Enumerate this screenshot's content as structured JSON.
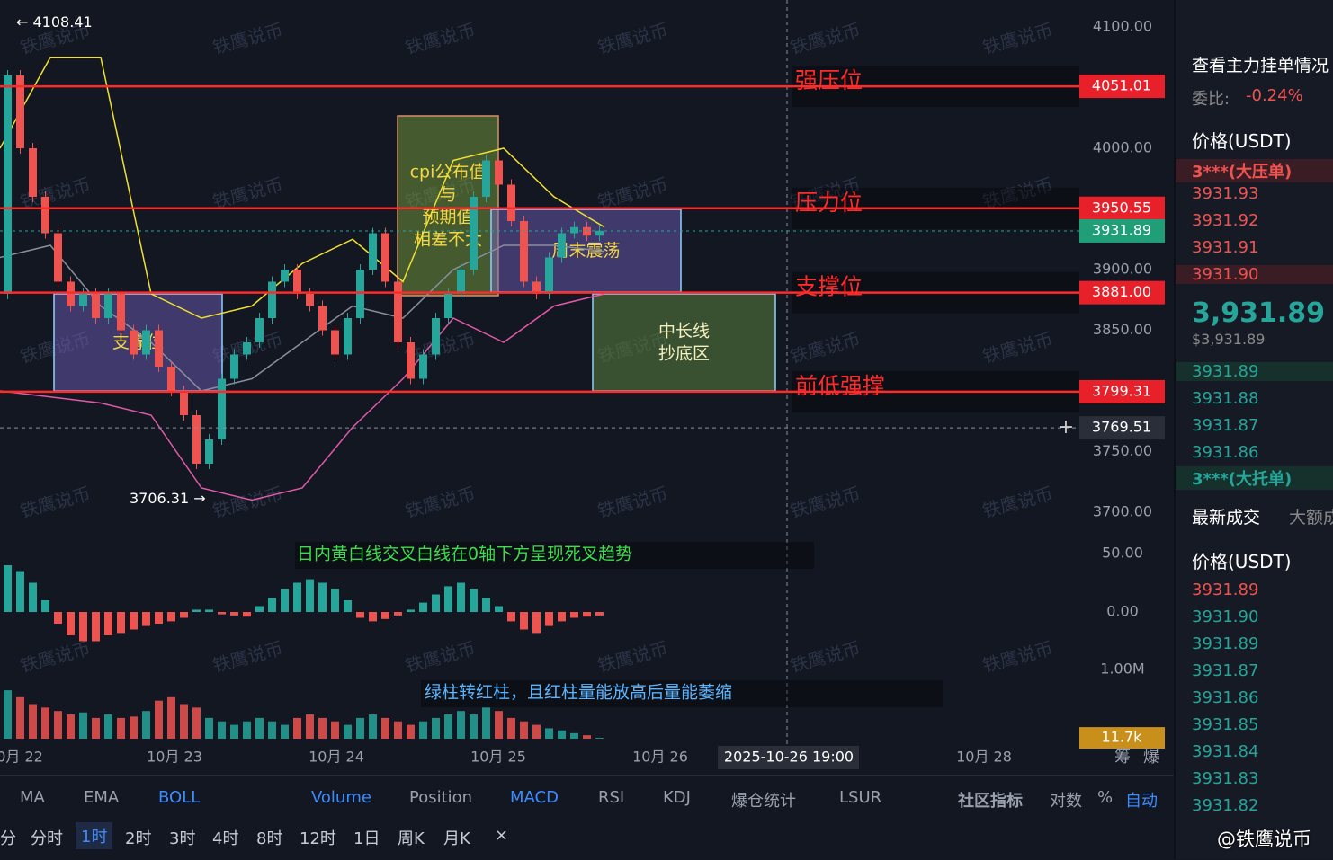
{
  "chart": {
    "watermark": "铁鹰说币",
    "high": {
      "value": 4108.41,
      "label": "← 4108.41"
    },
    "low": {
      "value": 3706.31,
      "label": "3706.31 →"
    },
    "price_ticks": [
      {
        "value": 4100,
        "label": "4100.00"
      },
      {
        "value": 4000,
        "label": "4000.00"
      },
      {
        "value": 3900,
        "label": "3900.00"
      },
      {
        "value": 3850,
        "label": "3850.00"
      },
      {
        "value": 3750,
        "label": "3750.00"
      },
      {
        "value": 3700,
        "label": "3700.00"
      }
    ],
    "levels": [
      {
        "value": 4051.01,
        "label": "4051.01",
        "name": "强压位"
      },
      {
        "value": 3950.55,
        "label": "3950.55",
        "name": "压力位"
      },
      {
        "value": 3881,
        "label": "3881.00",
        "name": "支撑位"
      },
      {
        "value": 3799.31,
        "label": "3799.31",
        "name": "前低强撑"
      }
    ],
    "current": {
      "value": 3931.89,
      "label": "3931.89"
    },
    "crosshair": {
      "value": 3769.51,
      "label": "3769.51",
      "time": "2025-10-26 19:00"
    },
    "x_labels": [
      "0月 22",
      "10月 23",
      "10月 24",
      "10月 25",
      "10月 26",
      "10月 28"
    ],
    "axis_buttons": [
      "筹",
      "爆"
    ],
    "open": 3880,
    "closes": [
      4060,
      4000,
      3960,
      3930,
      3890,
      3870,
      3880,
      3860,
      3880,
      3850,
      3830,
      3850,
      3820,
      3800,
      3780,
      3740,
      3760,
      3810,
      3830,
      3840,
      3860,
      3890,
      3900,
      3880,
      3870,
      3850,
      3830,
      3860,
      3900,
      3930,
      3890,
      3840,
      3810,
      3830,
      3860,
      3880,
      3900,
      3960,
      3990,
      3970,
      3940,
      3890,
      3880,
      3910,
      3930,
      3935,
      3928,
      3932
    ],
    "boll": {
      "upper": [
        4000,
        4075,
        4075,
        3880,
        3860,
        3870,
        3905,
        3925,
        3890,
        3990,
        4000,
        3960,
        3935
      ],
      "mid": [
        3910,
        3920,
        3870,
        3840,
        3800,
        3810,
        3840,
        3870,
        3860,
        3900,
        3920,
        3920,
        3915
      ],
      "lower": [
        3800,
        3795,
        3790,
        3780,
        3720,
        3710,
        3720,
        3770,
        3810,
        3860,
        3840,
        3870,
        3880
      ]
    },
    "boxes": [
      "支撑位",
      "cpi公布值\n与\n预期值\n相差不大",
      "周末震荡",
      "中长线\n抄底区"
    ],
    "macd_note": "日内黄白线交叉白线在0轴下方呈现死叉趋势",
    "volume_note": "绿柱转红柱，且红柱量能放高后量能萎缩",
    "macd_ticks": [
      {
        "value": 50,
        "label": "50.00"
      },
      {
        "value": 0,
        "label": "0.00"
      }
    ],
    "macd_hist": [
      40,
      35,
      25,
      10,
      -10,
      -20,
      -25,
      -25,
      -20,
      -18,
      -15,
      -12,
      -10,
      -8,
      -5,
      2,
      2,
      -2,
      -3,
      -4,
      5,
      12,
      20,
      25,
      28,
      25,
      20,
      10,
      -5,
      -8,
      -6,
      -3,
      2,
      8,
      15,
      22,
      25,
      20,
      12,
      5,
      -8,
      -15,
      -18,
      -12,
      -8,
      -5,
      -4,
      -3
    ],
    "volume_ticks": [
      {
        "value": 1000000,
        "label": "1.00M"
      }
    ],
    "volume_current": {
      "value": 11700,
      "label": "11.7k"
    },
    "volume": [
      700000,
      600000,
      500000,
      450000,
      400000,
      350000,
      380000,
      300000,
      350000,
      300000,
      320000,
      400000,
      550000,
      600000,
      500000,
      450000,
      300000,
      250000,
      200000,
      250000,
      300000,
      250000,
      200000,
      300000,
      350000,
      300000,
      250000,
      200000,
      300000,
      350000,
      300000,
      250000,
      200000,
      250000,
      300000,
      350000,
      400000,
      350000,
      450000,
      400000,
      300000,
      250000,
      200000,
      150000,
      120000,
      80000,
      50000,
      11700
    ]
  },
  "toolbar": {
    "indicators": [
      "MA",
      "EMA",
      "BOLL",
      "Volume",
      "Position",
      "MACD",
      "RSI",
      "KDJ",
      "爆仓统计",
      "LSUR",
      "社区指标",
      "对数",
      "%",
      "自动"
    ],
    "intervals": [
      "分",
      "分时",
      "1时",
      "2时",
      "3时",
      "4时",
      "8时",
      "12时",
      "1日",
      "周K",
      "月K",
      "×"
    ]
  },
  "orderbook": {
    "title": "查看主力挂单情况",
    "ratio_label": "委比:",
    "ratio": "-0.24%",
    "price_header": "价格(USDT)",
    "big_ask": "3***(大压单)",
    "asks": [
      "3931.93",
      "3931.92",
      "3931.91",
      "3931.90"
    ],
    "last": "3,931.89",
    "last_usd": "$3,931.89",
    "bids": [
      "3931.89",
      "3931.88",
      "3931.87",
      "3931.86"
    ],
    "big_bid": "3***(大托单)",
    "tabs": [
      "最新成交",
      "大额成"
    ],
    "trades_header": "价格(USDT)",
    "trades": [
      "3931.89",
      "3931.90",
      "3931.89",
      "3931.87",
      "3931.86",
      "3931.85",
      "3931.84",
      "3931.83",
      "3931.82"
    ],
    "credit": "@铁鹰说币"
  }
}
